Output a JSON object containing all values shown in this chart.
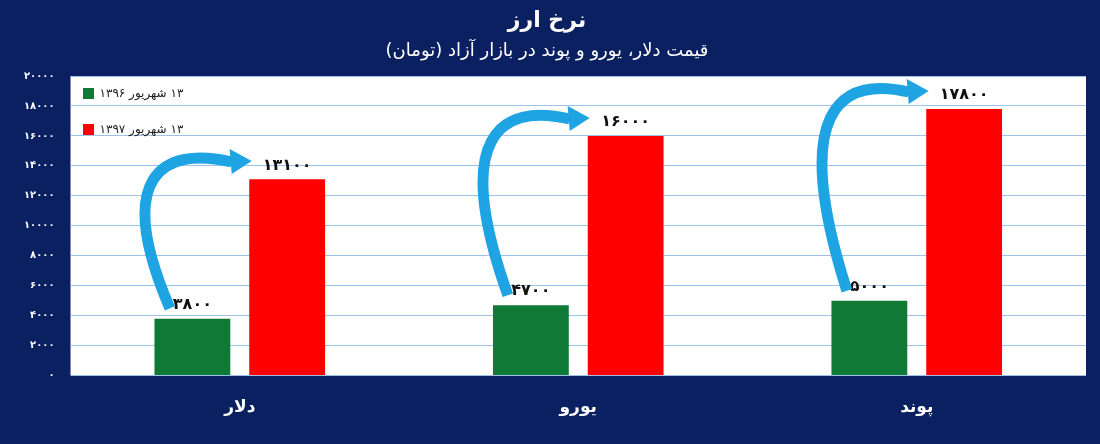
{
  "chart_data": {
    "type": "bar",
    "title": "نرخ ارز",
    "subtitle": "قیمت دلار، یورو و پوند در بازار آزاد (تومان)",
    "categories": [
      "دلار",
      "یورو",
      "پوند"
    ],
    "series": [
      {
        "name": "۱۳ شهریور ۱۳۹۶",
        "color": "#0f7a36",
        "values": [
          3800,
          4700,
          5000
        ],
        "value_labels": [
          "۳۸۰۰",
          "۴۷۰۰",
          "۵۰۰۰"
        ]
      },
      {
        "name": "۱۳ شهریور ۱۳۹۷",
        "color": "#ff0000",
        "values": [
          13100,
          16000,
          17800
        ],
        "value_labels": [
          "۱۳۱۰۰",
          "۱۶۰۰۰",
          "۱۷۸۰۰"
        ]
      }
    ],
    "ylim": [
      0,
      20000
    ],
    "yticks": [
      {
        "value": 0,
        "label": "۰"
      },
      {
        "value": 2000,
        "label": "۲۰۰۰"
      },
      {
        "value": 4000,
        "label": "۴۰۰۰"
      },
      {
        "value": 6000,
        "label": "۶۰۰۰"
      },
      {
        "value": 8000,
        "label": "۸۰۰۰"
      },
      {
        "value": 10000,
        "label": "۱۰۰۰۰"
      },
      {
        "value": 12000,
        "label": "۱۲۰۰۰"
      },
      {
        "value": 14000,
        "label": "۱۴۰۰۰"
      },
      {
        "value": 16000,
        "label": "۱۶۰۰۰"
      },
      {
        "value": 18000,
        "label": "۱۸۰۰۰"
      },
      {
        "value": 20000,
        "label": "۲۰۰۰۰"
      }
    ],
    "grid": "y",
    "legend": "top left"
  }
}
